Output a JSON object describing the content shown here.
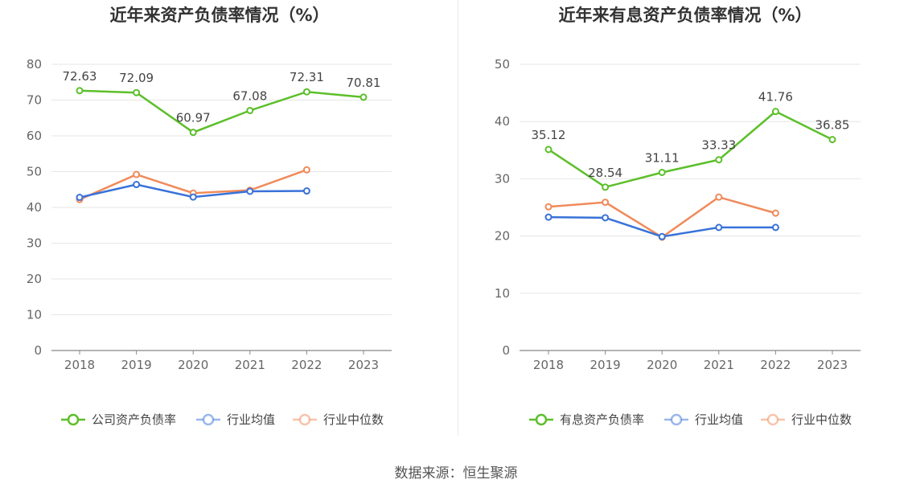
{
  "source": "数据来源：恒生聚源",
  "colors": {
    "company": "#5cbf2a",
    "industry_avg": "#3872d9",
    "industry_median": "#f08a5a",
    "grid": "#e6e6e6"
  },
  "chart_data": [
    {
      "type": "line",
      "title": "近年来资产负债率情况（%）",
      "categories": [
        "2018",
        "2019",
        "2020",
        "2021",
        "2022",
        "2023"
      ],
      "ylim": [
        0,
        80
      ],
      "yticks": [
        0,
        10,
        20,
        30,
        40,
        50,
        60,
        70,
        80
      ],
      "legend_position": "bottom",
      "grid": true,
      "series": [
        {
          "name": "公司资产负债率",
          "key": "company",
          "values": [
            72.63,
            72.09,
            60.97,
            67.08,
            72.31,
            70.81
          ],
          "labels": [
            "72.63",
            "72.09",
            "60.97",
            "67.08",
            "72.31",
            "70.81"
          ]
        },
        {
          "name": "行业均值",
          "key": "industry_avg",
          "values": [
            42.8,
            46.4,
            42.9,
            44.5,
            44.6,
            null
          ]
        },
        {
          "name": "行业中位数",
          "key": "industry_median",
          "values": [
            42.2,
            49.2,
            44.0,
            44.8,
            50.5,
            null
          ]
        }
      ]
    },
    {
      "type": "line",
      "title": "近年来有息资产负债率情况（%）",
      "categories": [
        "2018",
        "2019",
        "2020",
        "2021",
        "2022",
        "2023"
      ],
      "ylim": [
        0,
        50
      ],
      "yticks": [
        0,
        10,
        20,
        30,
        40,
        50
      ],
      "legend_position": "bottom",
      "grid": true,
      "series": [
        {
          "name": "有息资产负债率",
          "key": "company",
          "values": [
            35.12,
            28.54,
            31.11,
            33.33,
            41.76,
            36.85
          ],
          "labels": [
            "35.12",
            "28.54",
            "31.11",
            "33.33",
            "41.76",
            "36.85"
          ]
        },
        {
          "name": "行业均值",
          "key": "industry_avg",
          "values": [
            23.3,
            23.2,
            19.9,
            21.5,
            21.5,
            null
          ]
        },
        {
          "name": "行业中位数",
          "key": "industry_median",
          "values": [
            25.1,
            25.9,
            19.8,
            26.8,
            24.0,
            null
          ]
        }
      ]
    }
  ]
}
